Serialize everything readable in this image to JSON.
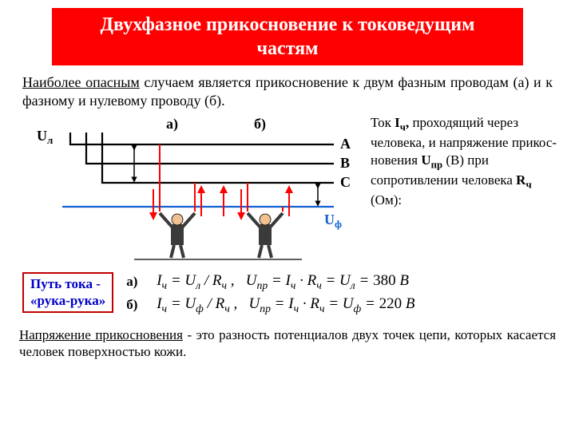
{
  "title": "Двухфазное прикосновение к токоведущим частям",
  "intro_html": "<span class='u1'>Наиболее опасным</span> случаем является прикосновение к двум фазным проводам (а) и к фазному  и нулевому проводу (б).",
  "diagram": {
    "phase_labels": [
      "A",
      "B",
      "C"
    ],
    "Ul_label": "Uл",
    "Uf_label": "Uф",
    "case_a_label": "а)",
    "case_b_label": "б)",
    "colors": {
      "wire": "#000000",
      "neutral": "#1060d0",
      "current_arrow": "#ff0000",
      "voltage_arrow": "#000000",
      "uf_text": "#1060d0",
      "person_suit": "#3a3a3a",
      "person_skin": "#f0c090"
    }
  },
  "side_text_html": "Ток  <b>I<sub>ч</sub>,</b> проходящий через человека, и напряжение прикос-новения  <b>U<sub>пр</sub></b> (В) при сопротивлении человека <b>R<sub>ч</sub></b> (Ом):",
  "path_box_html": "Путь тока -<br>«рука-рука»",
  "formulas": {
    "a_label": "а)",
    "b_label": "б)",
    "a_expr": "I<sub>ч</sub> = U<sub>л</sub> / R<sub>ч</sub> ,&nbsp;&nbsp; U<sub>пр</sub> = I<sub>ч</sub> · R<sub>ч</sub> = U<sub>л</sub> = <span class='up'>380</span> В",
    "b_expr": "I<sub>ч</sub> = U<sub>ф</sub> / R<sub>ч</sub> ,&nbsp;&nbsp; U<sub>пр</sub> = I<sub>ч</sub> · R<sub>ч</sub> = U<sub>ф</sub> = <span class='up'>220</span> В"
  },
  "definition_html": "<span class='u1'>Напряжение прикосновения</span> - это разность потенциалов двух точек цепи, которых касается человек поверхностью кожи."
}
